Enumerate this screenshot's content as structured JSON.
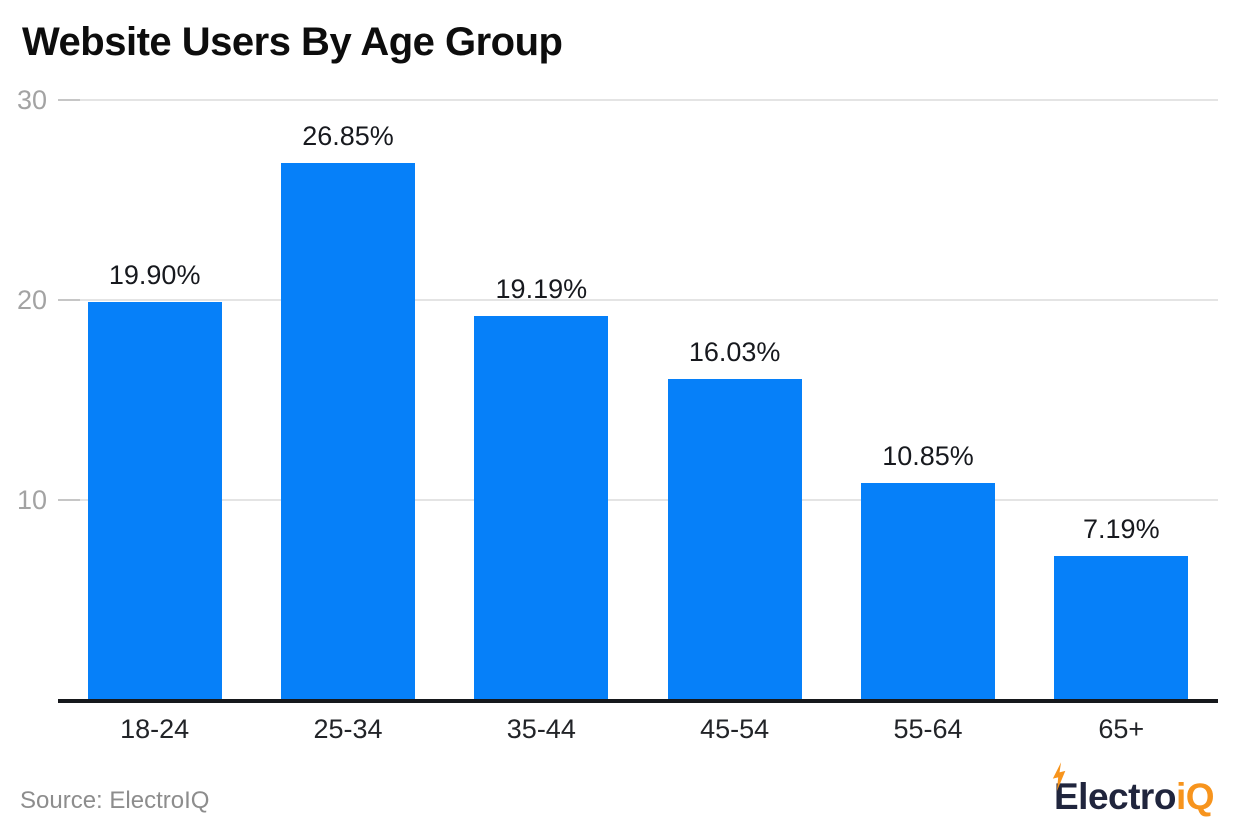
{
  "title": "Website Users By Age Group",
  "source": "Source: ElectroIQ",
  "logo": {
    "part1": "Electro",
    "part2": "iQ",
    "bolt_icon": "lightning-bolt"
  },
  "colors": {
    "bar": "#0680f9",
    "grid": "#e4e4e4",
    "tick": "#c6c6c6",
    "axis": "#16181c",
    "title": "#0d0d0d",
    "value_label": "#17191e",
    "x_label": "#222428",
    "y_label": "#a3a3a3",
    "source": "#8d8d8d",
    "logo_navy": "#20253d",
    "logo_orange": "#f7941d"
  },
  "chart_data": {
    "type": "bar",
    "title": "Website Users By Age Group",
    "categories": [
      "18-24",
      "25-34",
      "35-44",
      "45-54",
      "55-64",
      "65+"
    ],
    "values": [
      19.9,
      26.85,
      19.19,
      16.03,
      10.85,
      7.19
    ],
    "value_labels": [
      "19.90%",
      "26.85%",
      "19.19%",
      "16.03%",
      "10.85%",
      "7.19%"
    ],
    "xlabel": "",
    "ylabel": "",
    "ylim": [
      0,
      30
    ],
    "yticks": [
      10,
      20,
      30
    ],
    "grid": true,
    "legend": false,
    "bar_color": "#0680f9"
  }
}
